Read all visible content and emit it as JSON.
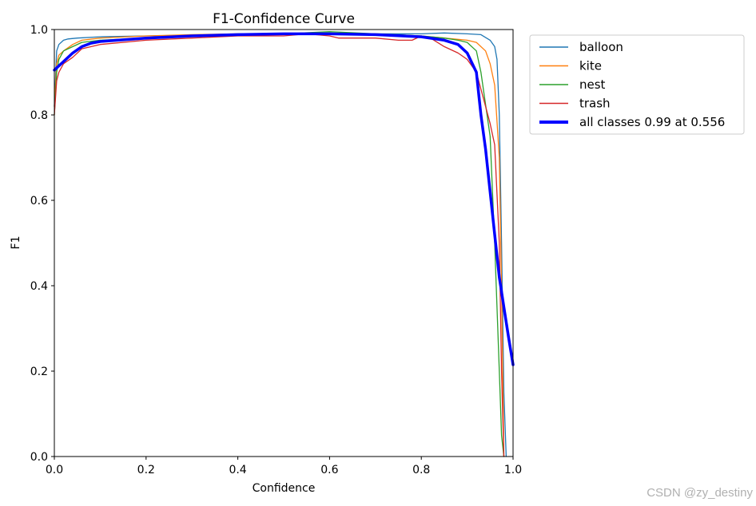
{
  "chart_data": {
    "type": "line",
    "title": "F1-Confidence Curve",
    "xlabel": "Confidence",
    "ylabel": "F1",
    "xlim": [
      0,
      1
    ],
    "ylim": [
      0,
      1
    ],
    "xticks": [
      "0.0",
      "0.2",
      "0.4",
      "0.6",
      "0.8",
      "1.0"
    ],
    "yticks": [
      "0.0",
      "0.2",
      "0.4",
      "0.6",
      "0.8",
      "1.0"
    ],
    "grid": false,
    "legend_position": "outside-right",
    "series": [
      {
        "name": "balloon",
        "color": "#1f77b4",
        "x": [
          0,
          0.005,
          0.01,
          0.02,
          0.03,
          0.05,
          0.1,
          0.2,
          0.3,
          0.4,
          0.5,
          0.6,
          0.7,
          0.8,
          0.85,
          0.9,
          0.93,
          0.95,
          0.96,
          0.965,
          0.97,
          0.975,
          0.98,
          0.985
        ],
        "y": [
          0.82,
          0.95,
          0.965,
          0.975,
          0.978,
          0.98,
          0.983,
          0.985,
          0.987,
          0.988,
          0.99,
          0.99,
          0.99,
          0.99,
          0.992,
          0.99,
          0.988,
          0.975,
          0.96,
          0.93,
          0.8,
          0.5,
          0.15,
          0.0
        ]
      },
      {
        "name": "kite",
        "color": "#ff7f0e",
        "x": [
          0,
          0.005,
          0.01,
          0.02,
          0.04,
          0.06,
          0.1,
          0.2,
          0.3,
          0.4,
          0.5,
          0.6,
          0.7,
          0.8,
          0.85,
          0.9,
          0.92,
          0.94,
          0.95,
          0.96,
          0.97,
          0.975,
          0.98
        ],
        "y": [
          0.82,
          0.92,
          0.94,
          0.95,
          0.965,
          0.975,
          0.98,
          0.985,
          0.988,
          0.99,
          0.99,
          0.99,
          0.99,
          0.985,
          0.98,
          0.975,
          0.97,
          0.95,
          0.92,
          0.87,
          0.7,
          0.4,
          0.0
        ]
      },
      {
        "name": "nest",
        "color": "#2ca02c",
        "x": [
          0,
          0.005,
          0.01,
          0.02,
          0.04,
          0.06,
          0.1,
          0.2,
          0.3,
          0.4,
          0.5,
          0.6,
          0.7,
          0.8,
          0.85,
          0.88,
          0.9,
          0.92,
          0.93,
          0.95,
          0.96,
          0.97,
          0.975,
          0.98
        ],
        "y": [
          0.8,
          0.9,
          0.93,
          0.95,
          0.96,
          0.97,
          0.975,
          0.98,
          0.985,
          0.99,
          0.99,
          0.995,
          0.99,
          0.985,
          0.98,
          0.975,
          0.97,
          0.95,
          0.9,
          0.75,
          0.5,
          0.2,
          0.05,
          0.0
        ]
      },
      {
        "name": "trash",
        "color": "#d62728",
        "x": [
          0,
          0.005,
          0.01,
          0.02,
          0.04,
          0.06,
          0.1,
          0.2,
          0.3,
          0.4,
          0.5,
          0.55,
          0.6,
          0.62,
          0.65,
          0.7,
          0.75,
          0.78,
          0.8,
          0.82,
          0.85,
          0.88,
          0.9,
          0.92,
          0.94,
          0.95,
          0.96,
          0.97,
          0.975,
          0.98
        ],
        "y": [
          0.8,
          0.88,
          0.9,
          0.92,
          0.935,
          0.955,
          0.965,
          0.975,
          0.98,
          0.985,
          0.985,
          0.99,
          0.985,
          0.98,
          0.98,
          0.98,
          0.975,
          0.975,
          0.985,
          0.98,
          0.96,
          0.945,
          0.93,
          0.9,
          0.82,
          0.78,
          0.73,
          0.5,
          0.2,
          0.0
        ]
      },
      {
        "name": "all classes 0.99 at 0.556",
        "color": "#0000ff",
        "thick": true,
        "x": [
          0,
          0.02,
          0.04,
          0.06,
          0.08,
          0.1,
          0.2,
          0.3,
          0.4,
          0.5,
          0.556,
          0.6,
          0.7,
          0.8,
          0.85,
          0.88,
          0.9,
          0.92,
          0.93,
          0.94,
          0.95,
          0.96,
          0.97,
          0.98,
          0.99,
          1.0
        ],
        "y": [
          0.905,
          0.925,
          0.945,
          0.96,
          0.968,
          0.972,
          0.98,
          0.985,
          0.988,
          0.99,
          0.99,
          0.99,
          0.988,
          0.983,
          0.975,
          0.965,
          0.945,
          0.9,
          0.8,
          0.72,
          0.62,
          0.52,
          0.42,
          0.35,
          0.28,
          0.215
        ]
      }
    ]
  },
  "watermark": "CSDN @zy_destiny"
}
